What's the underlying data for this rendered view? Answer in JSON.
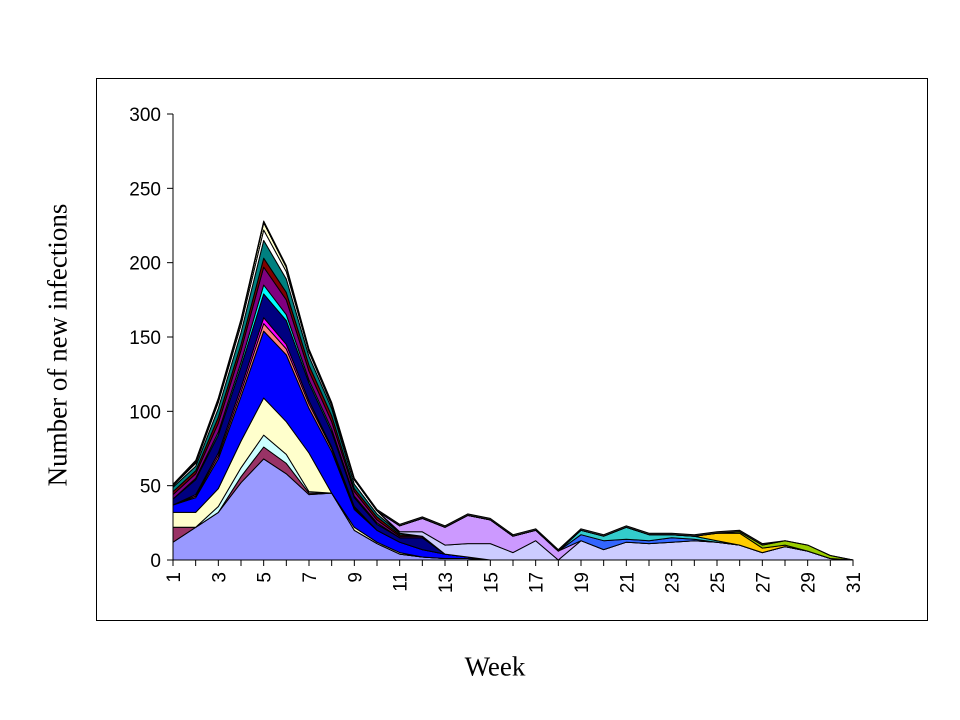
{
  "chart_data": {
    "type": "area",
    "stacked": true,
    "title": "",
    "xlabel": "Week",
    "ylabel": "Number of new infections",
    "ylim": [
      0,
      300
    ],
    "yticks": [
      0,
      50,
      100,
      150,
      200,
      250,
      300
    ],
    "xlim": [
      1,
      31
    ],
    "xticks": [
      1,
      3,
      5,
      7,
      9,
      11,
      13,
      15,
      17,
      19,
      21,
      23,
      25,
      27,
      29,
      31
    ],
    "grid": false,
    "legend": "none",
    "x": [
      1,
      2,
      3,
      4,
      5,
      6,
      7,
      8,
      9,
      10,
      11,
      12,
      13,
      14,
      15,
      16,
      17,
      18,
      19,
      20,
      21,
      22,
      23,
      24,
      25,
      26,
      27,
      28,
      29,
      30,
      31
    ],
    "series": [
      {
        "color": "#9999ff",
        "values": [
          12,
          22,
          32,
          52,
          68,
          58,
          44,
          45,
          20,
          11,
          4,
          2,
          1,
          1,
          0,
          0,
          0,
          0,
          0,
          0,
          0,
          0,
          0,
          0,
          0,
          0,
          0,
          0,
          0,
          0,
          0
        ]
      },
      {
        "color": "#993366",
        "values": [
          10,
          0,
          0,
          4,
          8,
          7,
          1,
          0,
          0,
          0,
          0,
          0,
          0,
          0,
          0,
          0,
          0,
          0,
          0,
          0,
          0,
          0,
          0,
          0,
          0,
          0,
          0,
          0,
          0,
          0,
          0
        ]
      },
      {
        "color": "#ccffff",
        "values": [
          0,
          0,
          4,
          6,
          8,
          6,
          1,
          0,
          0,
          0,
          0,
          0,
          0,
          0,
          0,
          0,
          0,
          0,
          0,
          0,
          0,
          0,
          0,
          0,
          0,
          0,
          0,
          0,
          0,
          0,
          0
        ]
      },
      {
        "color": "#ffffcc",
        "values": [
          10,
          10,
          12,
          18,
          25,
          22,
          26,
          0,
          2,
          1,
          1,
          0,
          0,
          0,
          0,
          0,
          0,
          0,
          0,
          0,
          0,
          0,
          0,
          0,
          0,
          0,
          0,
          0,
          0,
          0,
          0
        ]
      },
      {
        "color": "#0000ff",
        "values": [
          5,
          10,
          20,
          30,
          45,
          45,
          30,
          28,
          12,
          8,
          7,
          5,
          3,
          1,
          0,
          0,
          0,
          0,
          0,
          0,
          0,
          0,
          0,
          0,
          0,
          0,
          0,
          0,
          0,
          0,
          0
        ]
      },
      {
        "color": "#ff8080",
        "values": [
          0,
          1,
          2,
          3,
          5,
          4,
          3,
          2,
          1,
          0,
          0,
          0,
          0,
          0,
          0,
          0,
          0,
          0,
          0,
          0,
          0,
          0,
          0,
          0,
          0,
          0,
          0,
          0,
          0,
          0,
          0
        ]
      },
      {
        "color": "#ff00ff",
        "values": [
          0,
          1,
          2,
          3,
          4,
          3,
          2,
          1,
          1,
          0,
          0,
          0,
          0,
          0,
          0,
          0,
          0,
          0,
          0,
          0,
          0,
          0,
          0,
          0,
          0,
          0,
          0,
          0,
          0,
          0,
          0
        ]
      },
      {
        "color": "#000080",
        "values": [
          4,
          10,
          12,
          14,
          16,
          16,
          12,
          10,
          6,
          4,
          3,
          8,
          0,
          0,
          0,
          0,
          0,
          0,
          0,
          0,
          0,
          0,
          0,
          0,
          0,
          0,
          0,
          0,
          0,
          0,
          0
        ]
      },
      {
        "color": "#00ffff",
        "values": [
          0,
          1,
          2,
          3,
          6,
          4,
          2,
          2,
          1,
          1,
          0,
          0,
          0,
          0,
          0,
          0,
          0,
          0,
          0,
          0,
          0,
          0,
          0,
          0,
          0,
          0,
          0,
          0,
          0,
          0,
          0
        ]
      },
      {
        "color": "#800080",
        "values": [
          3,
          3,
          6,
          8,
          12,
          10,
          6,
          5,
          3,
          2,
          1,
          1,
          0,
          0,
          0,
          0,
          0,
          0,
          0,
          0,
          0,
          0,
          0,
          0,
          0,
          0,
          0,
          0,
          0,
          0,
          0
        ]
      },
      {
        "color": "#800000",
        "values": [
          2,
          2,
          4,
          4,
          6,
          5,
          4,
          4,
          2,
          2,
          1,
          0,
          0,
          0,
          0,
          0,
          0,
          0,
          0,
          0,
          0,
          0,
          0,
          0,
          0,
          0,
          0,
          0,
          0,
          0,
          0
        ]
      },
      {
        "color": "#008080",
        "values": [
          3,
          3,
          6,
          8,
          12,
          9,
          6,
          5,
          3,
          2,
          1,
          0,
          0,
          0,
          0,
          0,
          0,
          0,
          0,
          0,
          0,
          0,
          0,
          0,
          0,
          0,
          0,
          0,
          0,
          0,
          0
        ]
      },
      {
        "color": "#ffffff",
        "values": [
          1,
          2,
          4,
          5,
          7,
          5,
          3,
          2,
          3,
          2,
          0,
          0,
          0,
          0,
          0,
          0,
          0,
          0,
          0,
          0,
          0,
          0,
          0,
          0,
          0,
          0,
          0,
          0,
          0,
          0,
          0
        ]
      },
      {
        "color": "#ffffcc",
        "values": [
          0,
          1,
          2,
          3,
          5,
          3,
          1,
          1,
          0,
          0,
          0,
          0,
          0,
          0,
          0,
          0,
          0,
          0,
          0,
          0,
          0,
          0,
          0,
          0,
          0,
          0,
          0,
          0,
          0,
          0,
          0
        ]
      },
      {
        "color": "#ccccff",
        "values": [
          0,
          0,
          0,
          0,
          0,
          0,
          0,
          0,
          0,
          0,
          1,
          3,
          6,
          9,
          11,
          5,
          13,
          0,
          13,
          7,
          12,
          11,
          12,
          13,
          12,
          10,
          5,
          9,
          6,
          1,
          0
        ]
      },
      {
        "color": "#cc99ff",
        "values": [
          0,
          0,
          0,
          0,
          0,
          0,
          0,
          0,
          0,
          0,
          4,
          9,
          12,
          19,
          16,
          11,
          7,
          6,
          0,
          0,
          0,
          0,
          0,
          0,
          0,
          0,
          0,
          0,
          0,
          0,
          0
        ]
      },
      {
        "color": "#3366ff",
        "values": [
          0,
          0,
          0,
          0,
          0,
          0,
          0,
          0,
          0,
          0,
          0,
          0,
          0,
          0,
          0,
          0,
          0,
          0,
          4,
          6,
          2,
          2,
          3,
          1,
          0,
          0,
          0,
          0,
          0,
          0,
          0
        ]
      },
      {
        "color": "#33cccc",
        "values": [
          0,
          0,
          0,
          0,
          0,
          0,
          0,
          0,
          0,
          0,
          0,
          0,
          0,
          0,
          0,
          0,
          0,
          0,
          3,
          3,
          8,
          4,
          2,
          2,
          1,
          0,
          0,
          0,
          0,
          0,
          0
        ]
      },
      {
        "color": "#ffcc00",
        "values": [
          0,
          0,
          0,
          0,
          0,
          0,
          0,
          0,
          0,
          0,
          0,
          0,
          0,
          0,
          0,
          0,
          0,
          0,
          0,
          0,
          0,
          0,
          0,
          0,
          5,
          8,
          3,
          1,
          0,
          0,
          0
        ]
      },
      {
        "color": "#99cc00",
        "values": [
          0,
          0,
          0,
          0,
          0,
          0,
          0,
          0,
          0,
          0,
          0,
          0,
          0,
          0,
          0,
          0,
          0,
          0,
          0,
          0,
          0,
          0,
          0,
          0,
          0,
          1,
          2,
          3,
          4,
          2,
          0
        ]
      },
      {
        "color": "#333333",
        "values": [
          1,
          1,
          1,
          1,
          1,
          1,
          1,
          1,
          1,
          1,
          1,
          1,
          1,
          1,
          1,
          1,
          1,
          1,
          1,
          1,
          1,
          1,
          1,
          1,
          1,
          1,
          1,
          0,
          0,
          0,
          0
        ]
      }
    ]
  }
}
